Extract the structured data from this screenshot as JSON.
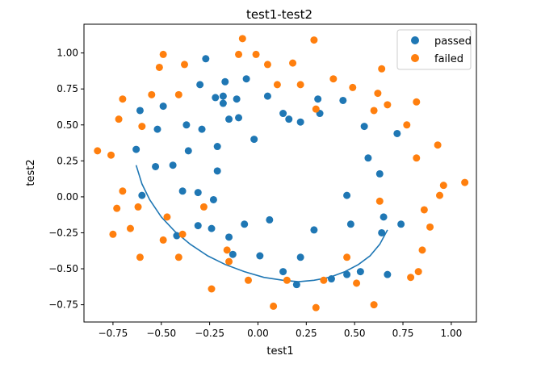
{
  "chart_data": {
    "type": "scatter",
    "title": "test1-test2",
    "xlabel": "test1",
    "ylabel": "test2",
    "xlim": [
      -0.9,
      1.13
    ],
    "ylim": [
      -0.87,
      1.2
    ],
    "xticks": [
      -0.75,
      -0.5,
      -0.25,
      0.0,
      0.25,
      0.5,
      0.75,
      1.0
    ],
    "xtick_labels": [
      "−0.75",
      "−0.50",
      "−0.25",
      "0.00",
      "0.25",
      "0.50",
      "0.75",
      "1.00"
    ],
    "yticks": [
      -0.75,
      -0.5,
      -0.25,
      0.0,
      0.25,
      0.5,
      0.75,
      1.0
    ],
    "ytick_labels": [
      "−0.75",
      "−0.50",
      "−0.25",
      "0.00",
      "0.25",
      "0.50",
      "0.75",
      "1.00"
    ],
    "grid": false,
    "legend_position": "top-right",
    "series": [
      {
        "name": "passed",
        "color": "#1f77b4",
        "points": [
          [
            -0.63,
            0.33
          ],
          [
            -0.61,
            0.6
          ],
          [
            -0.6,
            0.01
          ],
          [
            -0.53,
            0.21
          ],
          [
            -0.52,
            0.47
          ],
          [
            -0.49,
            0.63
          ],
          [
            -0.44,
            0.22
          ],
          [
            -0.42,
            -0.27
          ],
          [
            -0.39,
            0.04
          ],
          [
            -0.37,
            0.5
          ],
          [
            -0.36,
            0.32
          ],
          [
            -0.31,
            0.03
          ],
          [
            -0.31,
            -0.2
          ],
          [
            -0.3,
            0.78
          ],
          [
            -0.29,
            0.47
          ],
          [
            -0.27,
            0.96
          ],
          [
            -0.24,
            -0.22
          ],
          [
            -0.23,
            -0.02
          ],
          [
            -0.22,
            0.69
          ],
          [
            -0.21,
            0.18
          ],
          [
            -0.21,
            0.35
          ],
          [
            -0.18,
            0.7
          ],
          [
            -0.18,
            0.65
          ],
          [
            -0.17,
            0.8
          ],
          [
            -0.15,
            -0.28
          ],
          [
            -0.15,
            0.54
          ],
          [
            -0.13,
            -0.4
          ],
          [
            -0.11,
            0.68
          ],
          [
            -0.1,
            0.55
          ],
          [
            -0.07,
            -0.19
          ],
          [
            -0.06,
            0.82
          ],
          [
            -0.02,
            0.4
          ],
          [
            0.01,
            -0.41
          ],
          [
            0.05,
            0.7
          ],
          [
            0.06,
            -0.16
          ],
          [
            0.13,
            -0.52
          ],
          [
            0.13,
            0.58
          ],
          [
            0.16,
            0.54
          ],
          [
            0.2,
            -0.61
          ],
          [
            0.22,
            0.52
          ],
          [
            0.22,
            -0.42
          ],
          [
            0.29,
            -0.23
          ],
          [
            0.31,
            0.68
          ],
          [
            0.32,
            0.58
          ],
          [
            0.38,
            -0.57
          ],
          [
            0.44,
            0.67
          ],
          [
            0.46,
            0.01
          ],
          [
            0.46,
            -0.54
          ],
          [
            0.48,
            -0.19
          ],
          [
            0.53,
            -0.52
          ],
          [
            0.55,
            0.49
          ],
          [
            0.57,
            0.27
          ],
          [
            0.63,
            0.16
          ],
          [
            0.64,
            -0.25
          ],
          [
            0.65,
            -0.14
          ],
          [
            0.67,
            -0.54
          ],
          [
            0.72,
            0.44
          ],
          [
            0.74,
            -0.19
          ]
        ]
      },
      {
        "name": "failed",
        "color": "#ff7f0e",
        "points": [
          [
            -0.83,
            0.32
          ],
          [
            -0.76,
            0.29
          ],
          [
            -0.75,
            -0.26
          ],
          [
            -0.73,
            -0.08
          ],
          [
            -0.72,
            0.54
          ],
          [
            -0.7,
            0.68
          ],
          [
            -0.7,
            0.04
          ],
          [
            -0.66,
            -0.22
          ],
          [
            -0.62,
            -0.07
          ],
          [
            -0.61,
            -0.42
          ],
          [
            -0.6,
            0.49
          ],
          [
            -0.55,
            0.71
          ],
          [
            -0.51,
            0.9
          ],
          [
            -0.49,
            -0.3
          ],
          [
            -0.49,
            0.99
          ],
          [
            -0.47,
            -0.14
          ],
          [
            -0.41,
            0.71
          ],
          [
            -0.41,
            -0.42
          ],
          [
            -0.39,
            -0.26
          ],
          [
            -0.38,
            0.92
          ],
          [
            -0.28,
            -0.07
          ],
          [
            -0.24,
            -0.64
          ],
          [
            -0.16,
            -0.37
          ],
          [
            -0.15,
            -0.45
          ],
          [
            -0.1,
            0.99
          ],
          [
            -0.08,
            1.1
          ],
          [
            -0.05,
            -0.58
          ],
          [
            -0.01,
            0.99
          ],
          [
            0.05,
            0.92
          ],
          [
            0.08,
            -0.76
          ],
          [
            0.1,
            0.78
          ],
          [
            0.15,
            -0.58
          ],
          [
            0.18,
            0.93
          ],
          [
            0.22,
            0.78
          ],
          [
            0.29,
            1.09
          ],
          [
            0.3,
            -0.77
          ],
          [
            0.3,
            0.61
          ],
          [
            0.34,
            -0.58
          ],
          [
            0.39,
            0.82
          ],
          [
            0.46,
            -0.42
          ],
          [
            0.49,
            0.76
          ],
          [
            0.51,
            -0.6
          ],
          [
            0.6,
            -0.75
          ],
          [
            0.6,
            0.6
          ],
          [
            0.62,
            0.72
          ],
          [
            0.63,
            -0.03
          ],
          [
            0.64,
            0.89
          ],
          [
            0.67,
            0.64
          ],
          [
            0.77,
            0.5
          ],
          [
            0.79,
            -0.56
          ],
          [
            0.82,
            0.27
          ],
          [
            0.82,
            0.66
          ],
          [
            0.83,
            -0.52
          ],
          [
            0.85,
            -0.37
          ],
          [
            0.86,
            -0.09
          ],
          [
            0.89,
            -0.21
          ],
          [
            0.93,
            0.36
          ],
          [
            0.94,
            0.01
          ],
          [
            0.96,
            0.08
          ],
          [
            1.07,
            0.1
          ]
        ]
      }
    ],
    "boundary": {
      "color": "#1f77b4",
      "points": [
        [
          -0.63,
          0.22
        ],
        [
          -0.6,
          0.09
        ],
        [
          -0.56,
          -0.02
        ],
        [
          -0.5,
          -0.14
        ],
        [
          -0.43,
          -0.24
        ],
        [
          -0.35,
          -0.33
        ],
        [
          -0.26,
          -0.41
        ],
        [
          -0.17,
          -0.47
        ],
        [
          -0.07,
          -0.52
        ],
        [
          0.03,
          -0.56
        ],
        [
          0.13,
          -0.58
        ],
        [
          0.21,
          -0.59
        ],
        [
          0.29,
          -0.58
        ],
        [
          0.37,
          -0.56
        ],
        [
          0.45,
          -0.52
        ],
        [
          0.52,
          -0.47
        ],
        [
          0.58,
          -0.41
        ],
        [
          0.63,
          -0.33
        ],
        [
          0.67,
          -0.23
        ]
      ]
    }
  }
}
